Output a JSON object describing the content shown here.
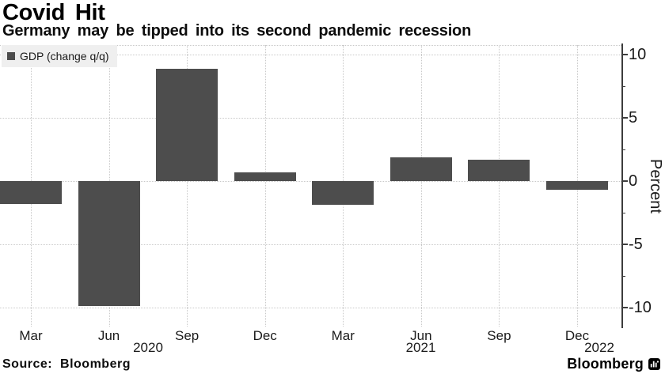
{
  "header": {
    "title": "Covid Hit",
    "subtitle": "Germany may be tipped into its second pandemic recession"
  },
  "legend": {
    "label": "GDP (change q/q)"
  },
  "chart_data": {
    "type": "bar",
    "title": "Covid Hit",
    "subtitle": "Germany may be tipped into its second pandemic recession",
    "series_name": "GDP (change q/q)",
    "categories": [
      "Mar 2020",
      "Jun 2020",
      "Sep 2020",
      "Dec 2020",
      "Mar 2021",
      "Jun 2021",
      "Sep 2021",
      "Dec 2021"
    ],
    "x_tick_labels": [
      "Mar",
      "Jun",
      "Sep",
      "Dec",
      "Mar",
      "Jun",
      "Sep",
      "Dec"
    ],
    "years": [
      "2020",
      "2021",
      "2022"
    ],
    "values": [
      -1.8,
      -9.9,
      8.9,
      0.7,
      -1.9,
      1.9,
      1.7,
      -0.7
    ],
    "ylabel": "Percent",
    "yticks": [
      10,
      5,
      0,
      -5,
      -10
    ],
    "minor_yticks": [
      7.5,
      2.5,
      -2.5,
      -7.5
    ],
    "ylim": [
      -11.5,
      10.75
    ],
    "grid": true,
    "legend_position": "top-left",
    "axis_side": "right",
    "bar_color": "#4d4d4d",
    "source": "Source: Bloomberg"
  },
  "footer": {
    "source": "Source: Bloomberg",
    "brand": "Bloomberg"
  }
}
